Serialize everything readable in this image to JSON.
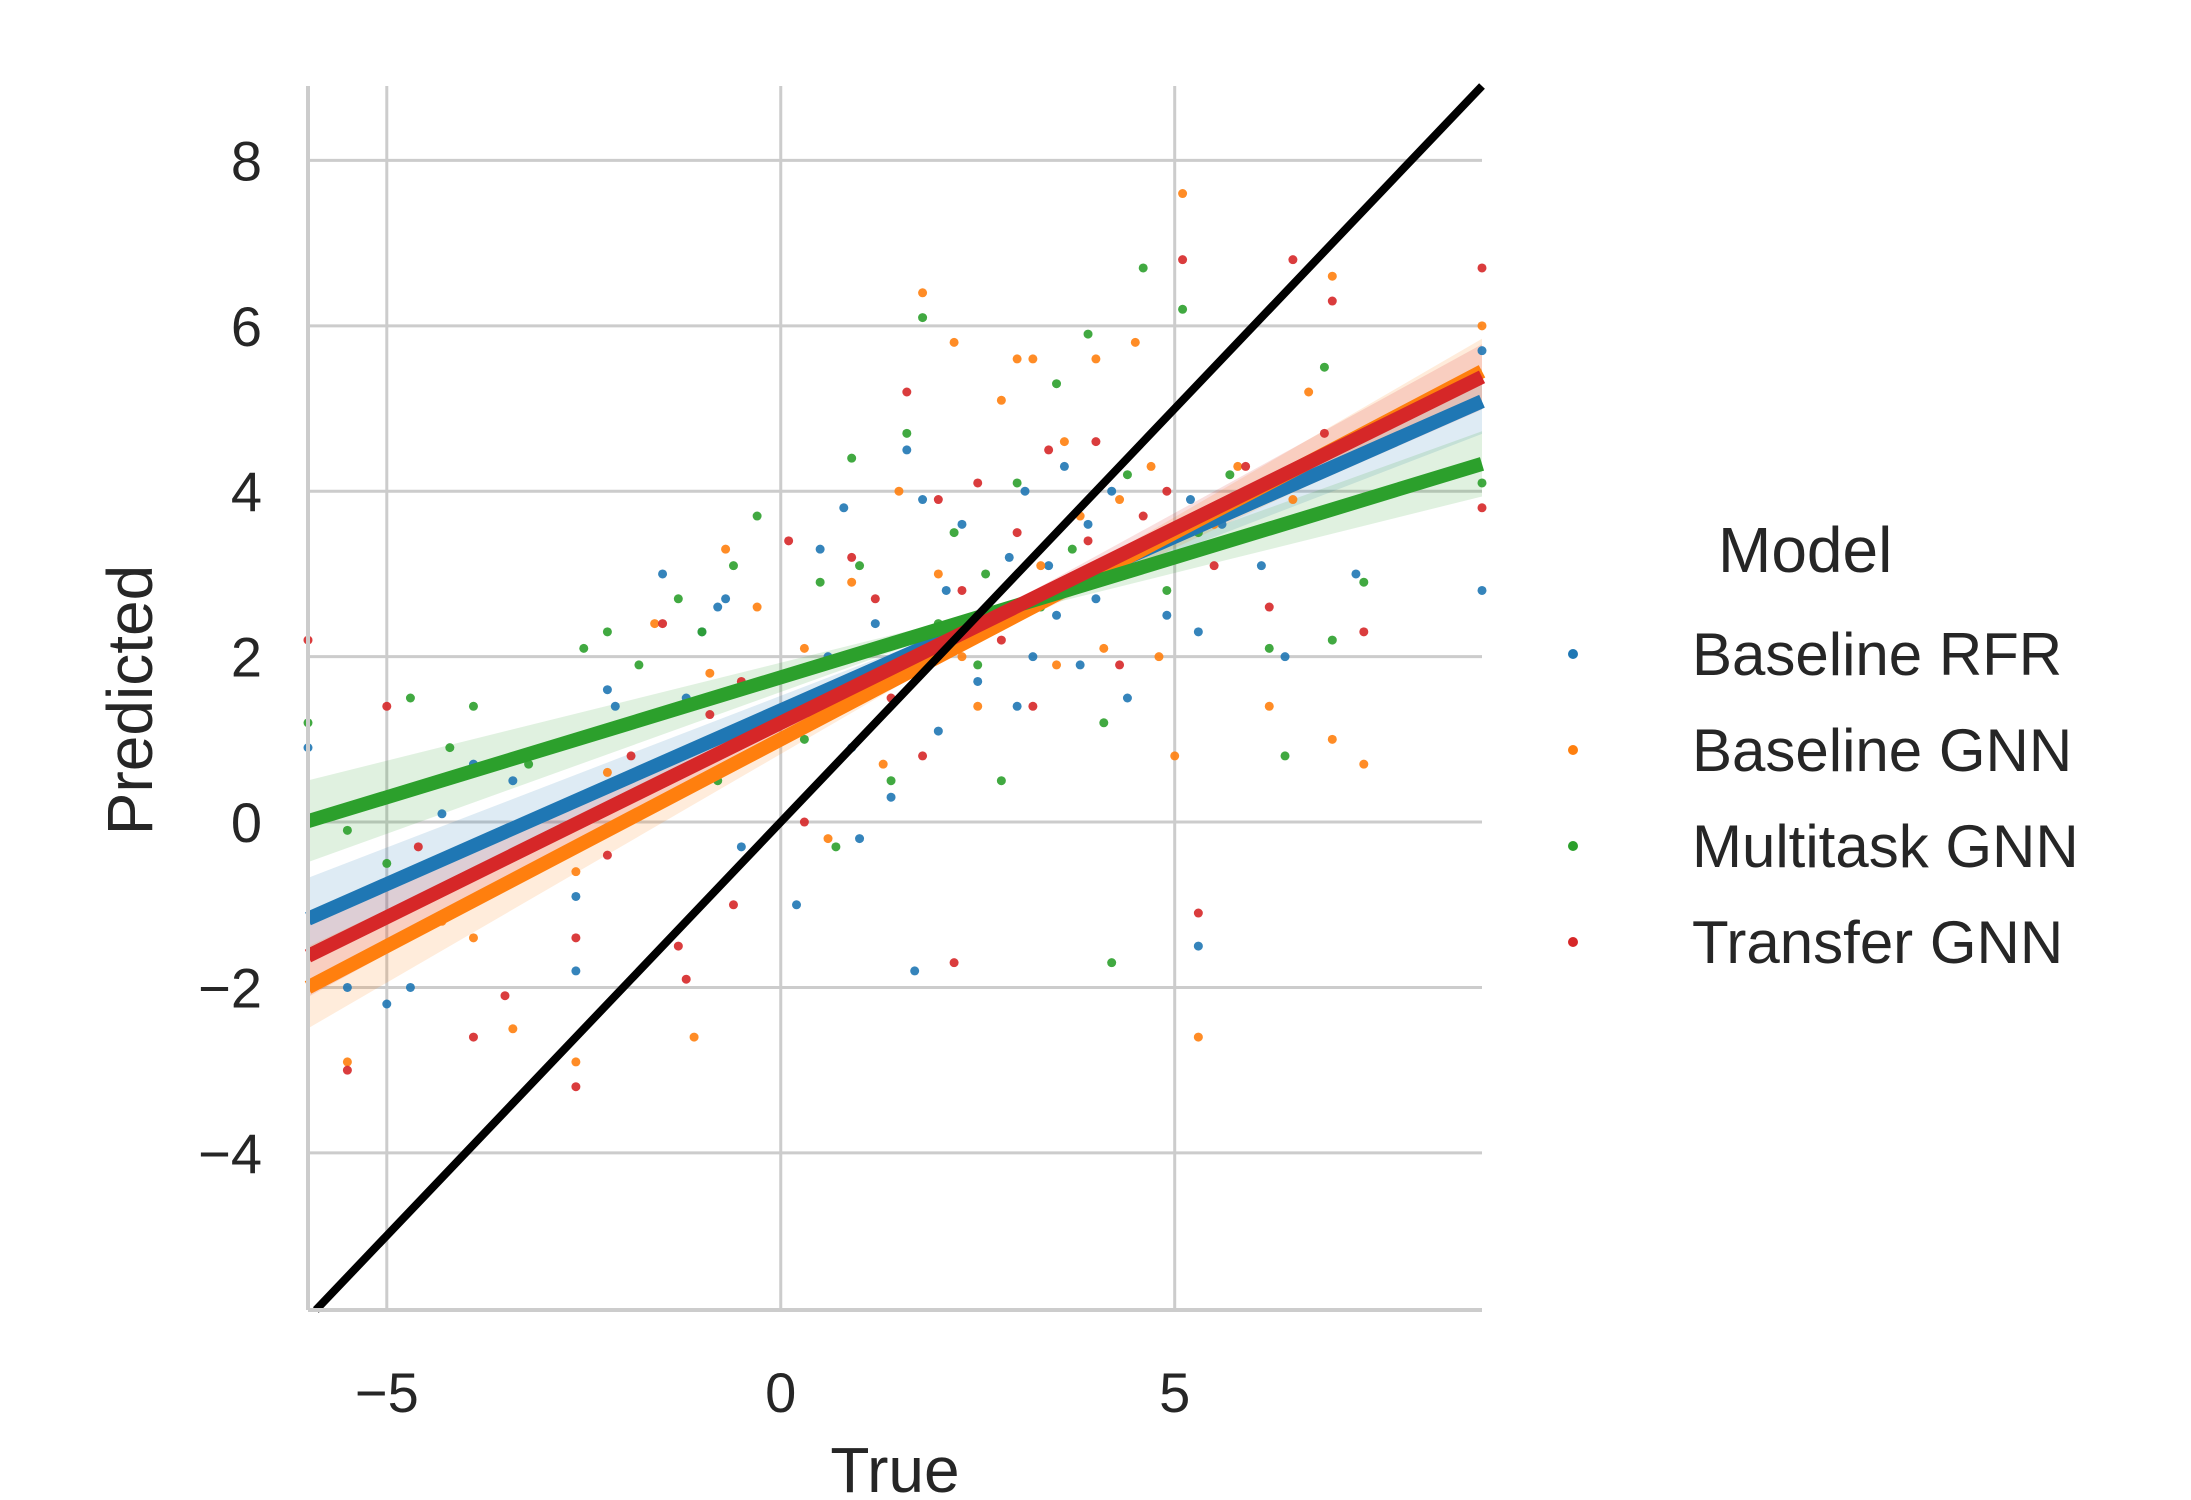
{
  "chart_data": {
    "type": "scatter",
    "xlabel": "True",
    "ylabel": "Predicted",
    "xlim": [
      -6,
      8.9
    ],
    "ylim": [
      -5.9,
      8.9
    ],
    "x_ticks": [
      -5,
      0,
      5
    ],
    "y_ticks": [
      -4,
      -2,
      0,
      2,
      4,
      6,
      8
    ],
    "x_tick_labels": [
      "−5",
      "0",
      "5"
    ],
    "y_tick_labels": [
      "−4",
      "−2",
      "0",
      "2",
      "4",
      "6",
      "8"
    ],
    "grid": true,
    "legend": {
      "title": "Model",
      "placement": "right"
    },
    "series": [
      {
        "name": "Baseline RFR",
        "color": "#1f77b4",
        "fit": {
          "slope": 0.42,
          "intercept": 1.35
        },
        "points": [
          [
            -6.0,
            0.9
          ],
          [
            -5.5,
            -2.0
          ],
          [
            -5.0,
            -2.2
          ],
          [
            -4.7,
            -2.0
          ],
          [
            -4.3,
            0.1
          ],
          [
            -3.9,
            0.7
          ],
          [
            -3.4,
            0.5
          ],
          [
            -2.6,
            -0.9
          ],
          [
            -2.6,
            -1.8
          ],
          [
            -2.2,
            1.6
          ],
          [
            -2.1,
            1.4
          ],
          [
            -1.5,
            3.0
          ],
          [
            -1.2,
            1.5
          ],
          [
            -1.0,
            2.3
          ],
          [
            -0.8,
            2.6
          ],
          [
            -0.7,
            2.7
          ],
          [
            -0.5,
            -0.3
          ],
          [
            0.2,
            -1.0
          ],
          [
            0.4,
            1.3
          ],
          [
            0.5,
            3.3
          ],
          [
            0.6,
            2.0
          ],
          [
            0.8,
            3.8
          ],
          [
            0.9,
            0.9
          ],
          [
            1.0,
            -0.2
          ],
          [
            1.2,
            2.4
          ],
          [
            1.4,
            0.3
          ],
          [
            1.6,
            4.5
          ],
          [
            1.8,
            3.9
          ],
          [
            1.7,
            -1.8
          ],
          [
            2.0,
            1.1
          ],
          [
            2.1,
            2.8
          ],
          [
            2.3,
            3.6
          ],
          [
            2.5,
            1.7
          ],
          [
            2.7,
            2.4
          ],
          [
            2.9,
            3.2
          ],
          [
            3.0,
            1.4
          ],
          [
            3.1,
            4.0
          ],
          [
            3.2,
            2.0
          ],
          [
            3.4,
            3.1
          ],
          [
            3.5,
            2.5
          ],
          [
            3.6,
            4.3
          ],
          [
            3.8,
            1.9
          ],
          [
            3.9,
            3.6
          ],
          [
            4.0,
            2.7
          ],
          [
            4.2,
            4.0
          ],
          [
            4.4,
            1.5
          ],
          [
            4.6,
            3.3
          ],
          [
            4.9,
            2.5
          ],
          [
            5.2,
            3.9
          ],
          [
            5.3,
            2.3
          ],
          [
            5.3,
            -1.5
          ],
          [
            5.6,
            3.6
          ],
          [
            6.1,
            3.1
          ],
          [
            6.4,
            2.0
          ],
          [
            7.3,
            3.0
          ],
          [
            8.9,
            5.7
          ],
          [
            8.9,
            2.8
          ]
        ]
      },
      {
        "name": "Baseline GNN",
        "color": "#ff7f0e",
        "fit": {
          "slope": 0.5,
          "intercept": 1.0
        },
        "points": [
          [
            -5.5,
            -2.9
          ],
          [
            -4.3,
            -1.2
          ],
          [
            -3.9,
            -1.4
          ],
          [
            -3.4,
            -2.5
          ],
          [
            -2.6,
            -2.9
          ],
          [
            -2.6,
            -0.6
          ],
          [
            -2.2,
            0.6
          ],
          [
            -1.6,
            2.4
          ],
          [
            -1.1,
            -2.6
          ],
          [
            -0.9,
            1.8
          ],
          [
            -0.7,
            3.3
          ],
          [
            -0.3,
            2.6
          ],
          [
            0.3,
            2.1
          ],
          [
            0.6,
            -0.2
          ],
          [
            0.9,
            2.9
          ],
          [
            1.1,
            1.6
          ],
          [
            1.3,
            0.7
          ],
          [
            1.5,
            4.0
          ],
          [
            1.8,
            6.4
          ],
          [
            2.0,
            3.0
          ],
          [
            2.2,
            5.8
          ],
          [
            2.3,
            2.0
          ],
          [
            2.5,
            1.4
          ],
          [
            2.8,
            5.1
          ],
          [
            2.9,
            2.6
          ],
          [
            3.0,
            5.6
          ],
          [
            3.2,
            5.6
          ],
          [
            3.3,
            3.1
          ],
          [
            3.5,
            1.9
          ],
          [
            3.6,
            4.6
          ],
          [
            3.8,
            3.7
          ],
          [
            4.0,
            5.6
          ],
          [
            4.1,
            2.1
          ],
          [
            4.3,
            3.9
          ],
          [
            4.5,
            5.8
          ],
          [
            4.7,
            4.3
          ],
          [
            4.8,
            2.0
          ],
          [
            5.0,
            0.8
          ],
          [
            5.1,
            7.6
          ],
          [
            5.3,
            -2.6
          ],
          [
            5.5,
            3.6
          ],
          [
            5.8,
            4.3
          ],
          [
            6.2,
            1.4
          ],
          [
            6.5,
            3.9
          ],
          [
            6.7,
            5.2
          ],
          [
            7.0,
            6.6
          ],
          [
            7.0,
            1.0
          ],
          [
            7.4,
            0.7
          ],
          [
            8.9,
            6.0
          ]
        ]
      },
      {
        "name": "Multitask GNN",
        "color": "#2ca02c",
        "fit": {
          "slope": 0.29,
          "intercept": 1.75
        },
        "points": [
          [
            -6.0,
            1.2
          ],
          [
            -5.5,
            -0.1
          ],
          [
            -5.0,
            -0.5
          ],
          [
            -4.7,
            1.5
          ],
          [
            -4.2,
            0.9
          ],
          [
            -3.9,
            1.4
          ],
          [
            -3.2,
            0.7
          ],
          [
            -2.5,
            2.1
          ],
          [
            -2.2,
            2.3
          ],
          [
            -1.8,
            1.9
          ],
          [
            -1.3,
            2.7
          ],
          [
            -1.0,
            2.3
          ],
          [
            -0.8,
            0.5
          ],
          [
            -0.6,
            3.1
          ],
          [
            -0.3,
            3.7
          ],
          [
            0.3,
            1.0
          ],
          [
            0.5,
            2.9
          ],
          [
            0.7,
            -0.3
          ],
          [
            0.9,
            4.4
          ],
          [
            1.0,
            3.1
          ],
          [
            1.3,
            2.1
          ],
          [
            1.4,
            0.5
          ],
          [
            1.6,
            4.7
          ],
          [
            1.8,
            6.1
          ],
          [
            2.0,
            2.4
          ],
          [
            2.2,
            3.5
          ],
          [
            2.5,
            1.9
          ],
          [
            2.6,
            3.0
          ],
          [
            2.8,
            0.5
          ],
          [
            3.0,
            4.1
          ],
          [
            3.3,
            2.6
          ],
          [
            3.5,
            5.3
          ],
          [
            3.7,
            3.3
          ],
          [
            3.9,
            5.9
          ],
          [
            4.1,
            1.2
          ],
          [
            4.2,
            -1.7
          ],
          [
            4.4,
            4.2
          ],
          [
            4.6,
            6.7
          ],
          [
            4.9,
            2.8
          ],
          [
            5.1,
            6.2
          ],
          [
            5.3,
            3.5
          ],
          [
            5.7,
            4.2
          ],
          [
            6.2,
            2.1
          ],
          [
            6.4,
            0.8
          ],
          [
            6.9,
            5.5
          ],
          [
            7.0,
            2.2
          ],
          [
            7.4,
            2.9
          ],
          [
            8.9,
            4.1
          ]
        ]
      },
      {
        "name": "Transfer GNN",
        "color": "#d62728",
        "fit": {
          "slope": 0.47,
          "intercept": 1.2
        },
        "points": [
          [
            -6.0,
            2.2
          ],
          [
            -5.5,
            -3.0
          ],
          [
            -5.0,
            1.4
          ],
          [
            -4.6,
            -0.3
          ],
          [
            -3.9,
            -2.6
          ],
          [
            -3.5,
            -2.1
          ],
          [
            -2.6,
            -3.2
          ],
          [
            -2.6,
            -1.4
          ],
          [
            -2.2,
            -0.4
          ],
          [
            -1.9,
            0.8
          ],
          [
            -1.5,
            2.4
          ],
          [
            -1.3,
            -1.5
          ],
          [
            -1.2,
            -1.9
          ],
          [
            -0.9,
            1.3
          ],
          [
            -0.6,
            -1.0
          ],
          [
            -0.5,
            1.7
          ],
          [
            0.1,
            3.4
          ],
          [
            0.3,
            0.0
          ],
          [
            0.6,
            1.5
          ],
          [
            0.9,
            3.2
          ],
          [
            1.2,
            2.7
          ],
          [
            1.4,
            1.5
          ],
          [
            1.6,
            5.2
          ],
          [
            1.8,
            0.8
          ],
          [
            2.0,
            3.9
          ],
          [
            2.2,
            -1.7
          ],
          [
            2.3,
            2.8
          ],
          [
            2.5,
            4.1
          ],
          [
            2.8,
            2.2
          ],
          [
            3.0,
            3.5
          ],
          [
            3.2,
            1.4
          ],
          [
            3.4,
            4.5
          ],
          [
            3.6,
            2.8
          ],
          [
            3.9,
            3.4
          ],
          [
            4.0,
            4.6
          ],
          [
            4.3,
            1.9
          ],
          [
            4.6,
            3.7
          ],
          [
            4.9,
            4.0
          ],
          [
            5.1,
            6.8
          ],
          [
            5.3,
            -1.1
          ],
          [
            5.5,
            3.1
          ],
          [
            5.9,
            4.3
          ],
          [
            6.2,
            2.6
          ],
          [
            6.5,
            6.8
          ],
          [
            6.9,
            4.7
          ],
          [
            7.0,
            6.3
          ],
          [
            7.4,
            2.3
          ],
          [
            8.9,
            6.7
          ],
          [
            8.9,
            3.8
          ]
        ]
      }
    ],
    "reference_line": {
      "name": "y = x",
      "color": "#000000"
    }
  }
}
